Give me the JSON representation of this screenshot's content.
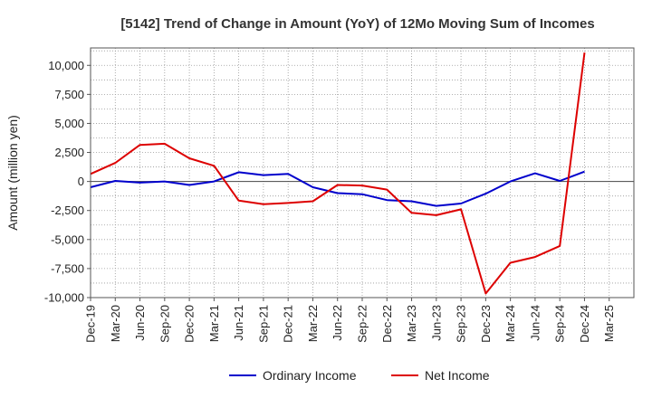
{
  "chart_data": {
    "type": "line",
    "title": "[5142]  Trend of Change in Amount (YoY) of 12Mo Moving Sum of Incomes",
    "xlabel": "",
    "ylabel": "Amount (million yen)",
    "ylim": [
      -10000,
      11500
    ],
    "yticks": [
      10000,
      7500,
      5000,
      2500,
      0,
      -2500,
      -5000,
      -7500,
      -10000
    ],
    "ytick_labels": [
      "10,000",
      "7,500",
      "5,000",
      "2,500",
      "0",
      "-2,500",
      "-5,000",
      "-7,500",
      "-10,000"
    ],
    "x": [
      "Dec-19",
      "Mar-20",
      "Jun-20",
      "Sep-20",
      "Dec-20",
      "Mar-21",
      "Jun-21",
      "Sep-21",
      "Dec-21",
      "Mar-22",
      "Jun-22",
      "Sep-22",
      "Dec-22",
      "Mar-23",
      "Jun-23",
      "Sep-23",
      "Dec-23",
      "Mar-24",
      "Jun-24",
      "Sep-24",
      "Dec-24",
      "Mar-25"
    ],
    "xtick_labels": [
      "Dec-19",
      "Mar-20",
      "Jun-20",
      "Sep-20",
      "Dec-20",
      "Mar-21",
      "Jun-21",
      "Sep-21",
      "Dec-21",
      "Mar-22",
      "Jun-22",
      "Sep-22",
      "Dec-22",
      "Mar-23",
      "Jun-23",
      "Sep-23",
      "Dec-23",
      "Mar-24",
      "Jun-24",
      "Sep-24",
      "Dec-24",
      "Mar-25"
    ],
    "grid": true,
    "legend_position": "bottom",
    "series": [
      {
        "name": "Ordinary Income",
        "color": "#0000cc",
        "values": [
          -500,
          50,
          -100,
          0,
          -300,
          0,
          800,
          550,
          650,
          -500,
          -1000,
          -1100,
          -1600,
          -1700,
          -2100,
          -1900,
          -1050,
          0,
          700,
          50,
          850,
          null
        ]
      },
      {
        "name": "Net Income",
        "color": "#dd0000",
        "values": [
          650,
          1600,
          3150,
          3250,
          2000,
          1350,
          -1650,
          -1950,
          -1850,
          -1700,
          -300,
          -350,
          -700,
          -2700,
          -2900,
          -2400,
          -9650,
          -7000,
          -6500,
          -5550,
          11100,
          null
        ]
      }
    ]
  }
}
